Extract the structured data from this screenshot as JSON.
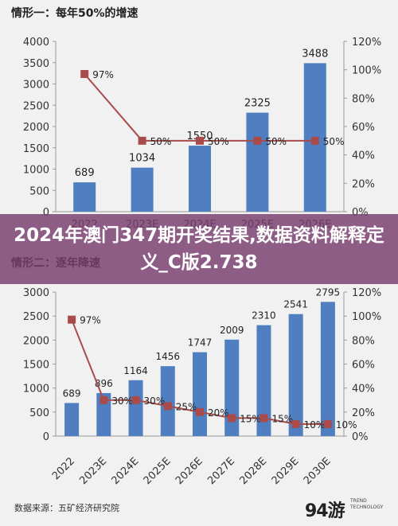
{
  "overlay_title": "2024年澳门347期开奖结果,数据资料解释定义_C版2.738",
  "source": "数据来源：五矿经济研究院",
  "logo": {
    "mark": "94游",
    "line1": "TREND",
    "line2": "TECHNOLOGY"
  },
  "colors": {
    "bar": "#4f7fc1",
    "line": "#a94b4b",
    "marker": "#a94b4b"
  },
  "chart_data": [
    {
      "type": "bar",
      "title": "情形一：每年50%的增速",
      "categories": [
        "2022",
        "2023E",
        "2024E",
        "2025E",
        "2026E"
      ],
      "series": [
        {
          "values": [
            689,
            1034,
            1550,
            2325,
            3488
          ],
          "axis": "left",
          "kind": "bar"
        },
        {
          "values": [
            97,
            50,
            50,
            50,
            50
          ],
          "axis": "right",
          "kind": "line"
        }
      ],
      "value_labels": [
        "689",
        "1034",
        "1550",
        "2325",
        "3488"
      ],
      "pct_labels": [
        "97%",
        "50%",
        "50%",
        "50%",
        "50%"
      ],
      "ylim_left": [
        0,
        4000
      ],
      "yticks_left": [
        "0",
        "500",
        "1000",
        "1500",
        "2000",
        "2500",
        "3000",
        "3500",
        "4000"
      ],
      "ylim_right": [
        0,
        120
      ],
      "yticks_right": [
        "0%",
        "20%",
        "40%",
        "60%",
        "80%",
        "100%",
        "120%"
      ],
      "grid": false
    },
    {
      "type": "bar",
      "title": "情形二：逐年降速",
      "categories": [
        "2022",
        "2023E",
        "2024E",
        "2025E",
        "2026E",
        "2027E",
        "2028E",
        "2029E",
        "2030E"
      ],
      "series": [
        {
          "values": [
            689,
            896,
            1164,
            1456,
            1747,
            2009,
            2310,
            2541,
            2795
          ],
          "axis": "left",
          "kind": "bar"
        },
        {
          "values": [
            97,
            30,
            30,
            25,
            20,
            15,
            15,
            10,
            10
          ],
          "axis": "right",
          "kind": "line"
        }
      ],
      "value_labels": [
        "689",
        "896",
        "1164",
        "1456",
        "1747",
        "2009",
        "2310",
        "2541",
        "2795"
      ],
      "pct_labels": [
        "97%",
        "30%",
        "30%",
        "25%",
        "20%",
        "15%",
        "15%",
        "10%",
        "10%"
      ],
      "ylim_left": [
        0,
        3000
      ],
      "yticks_left": [
        "0",
        "500",
        "1000",
        "1500",
        "2000",
        "2500",
        "3000"
      ],
      "ylim_right": [
        0,
        120
      ],
      "yticks_right": [
        "0%",
        "20%",
        "40%",
        "60%",
        "80%",
        "100%",
        "120%"
      ],
      "grid": false
    }
  ]
}
